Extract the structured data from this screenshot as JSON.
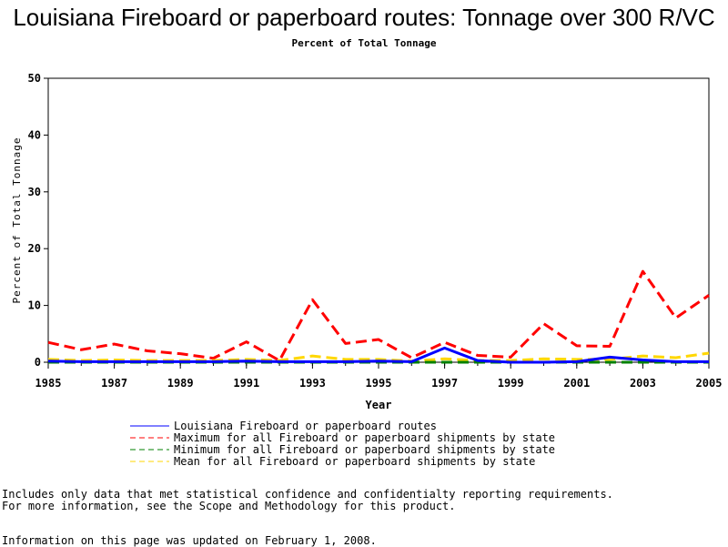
{
  "chart_data": {
    "type": "line",
    "title": "Louisiana Fireboard or paperboard routes: Tonnage over 300 R/VC",
    "subtitle": "Percent of Total Tonnage",
    "xlabel": "Year",
    "ylabel": "Percent of Total Tonnage",
    "xlim": [
      1985,
      2005
    ],
    "ylim": [
      0,
      50
    ],
    "x_ticks": [
      "1985",
      "1987",
      "1989",
      "1991",
      "1993",
      "1995",
      "1997",
      "1999",
      "2001",
      "2003",
      "2005"
    ],
    "y_ticks": [
      "0",
      "10",
      "20",
      "30",
      "40",
      "50"
    ],
    "legend_position": "bottom",
    "x": [
      1985,
      1986,
      1987,
      1988,
      1989,
      1990,
      1991,
      1992,
      1993,
      1994,
      1995,
      1996,
      1997,
      1998,
      1999,
      2000,
      2001,
      2002,
      2003,
      2004,
      2005
    ],
    "series": [
      {
        "name": "Louisiana Fireboard or paperboard routes",
        "color": "#0000ff",
        "dash": "solid",
        "values": [
          0.2,
          0.1,
          0.1,
          0.1,
          0.1,
          0.1,
          0.2,
          0.1,
          0.1,
          0.1,
          0.2,
          0.1,
          2.5,
          0.3,
          0.0,
          0.0,
          0.1,
          0.9,
          0.4,
          0.1,
          0.1
        ]
      },
      {
        "name": "Maximum for all Fireboard or paperboard shipments by state",
        "color": "#ff0000",
        "dash": "dashed",
        "values": [
          3.5,
          2.2,
          3.2,
          2.0,
          1.5,
          0.7,
          3.6,
          0.3,
          11.0,
          3.3,
          4.0,
          0.8,
          3.5,
          1.2,
          0.9,
          6.8,
          2.9,
          2.8,
          16.0,
          7.8,
          11.8
        ]
      },
      {
        "name": "Minimum for all Fireboard or paperboard shipments by state",
        "color": "#008000",
        "dash": "dashed",
        "values": [
          0,
          0,
          0,
          0,
          0,
          0,
          0,
          0,
          0,
          0,
          0,
          0,
          0,
          0,
          0,
          0,
          0,
          0,
          0,
          0,
          0
        ]
      },
      {
        "name": "Mean for all Fireboard or paperboard shipments by state",
        "color": "#ffd700",
        "dash": "dashed",
        "values": [
          0.5,
          0.3,
          0.4,
          0.3,
          0.3,
          0.3,
          0.5,
          0.3,
          1.1,
          0.5,
          0.5,
          0.2,
          0.6,
          0.3,
          0.3,
          0.6,
          0.5,
          0.5,
          1.1,
          0.8,
          1.6
        ]
      }
    ]
  },
  "notes": {
    "line1": "Includes only data that met statistical confidence and confidentialty reporting requirements.",
    "line2": "For more information, see the Scope and Methodology for this product.",
    "line3": "Information on this page was updated on February 1, 2008."
  }
}
